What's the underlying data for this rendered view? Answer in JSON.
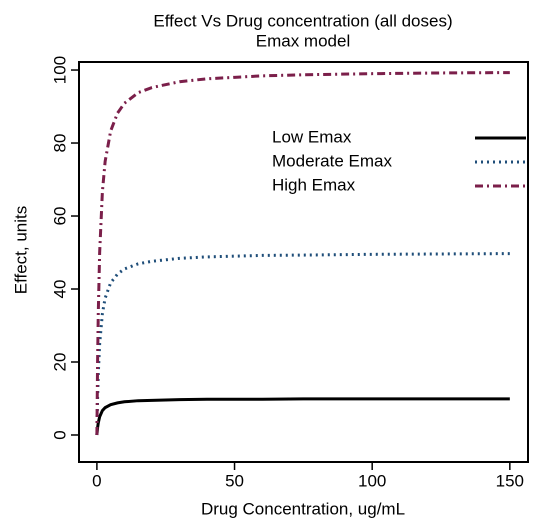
{
  "chart_data": {
    "type": "line",
    "title": "Effect Vs Drug concentration (all doses)",
    "subtitle": "Emax model",
    "x_label": "Drug Concentration, ug/mL",
    "y_label": "Effect, units",
    "x": [
      0,
      0.25,
      0.5,
      1,
      2,
      3,
      5,
      7.5,
      10,
      15,
      20,
      30,
      40,
      50,
      60,
      75,
      100,
      125,
      150
    ],
    "series": [
      {
        "name": "Low Emax",
        "color": "#000000",
        "linestyle": "solid",
        "values": [
          0,
          2,
          3.3,
          5,
          6.7,
          7.5,
          8.3,
          8.8,
          9.1,
          9.4,
          9.5,
          9.7,
          9.8,
          9.8,
          9.8,
          9.9,
          9.9,
          9.9,
          9.9
        ]
      },
      {
        "name": "Moderate Emax",
        "color": "#1f4e79",
        "linestyle": "dotted",
        "values": [
          0,
          10,
          16.7,
          25,
          33.3,
          37.5,
          41.7,
          44.1,
          45.5,
          46.9,
          47.6,
          48.4,
          48.8,
          49,
          49.2,
          49.3,
          49.5,
          49.6,
          49.7
        ]
      },
      {
        "name": "High Emax",
        "color": "#7b1f4a",
        "linestyle": "dashdot",
        "values": [
          0,
          20,
          33.3,
          50,
          66.7,
          75,
          83.3,
          88.2,
          90.9,
          93.8,
          95.2,
          96.8,
          97.6,
          98,
          98.4,
          98.7,
          99,
          99.2,
          99.3
        ]
      }
    ],
    "xlim": [
      -6.5,
      156.6
    ],
    "ylim": [
      -7.4,
      102.2
    ],
    "xticks": [
      0,
      50,
      100,
      150
    ],
    "yticks": [
      0,
      20,
      40,
      60,
      80,
      100
    ],
    "legend": "top-right"
  }
}
